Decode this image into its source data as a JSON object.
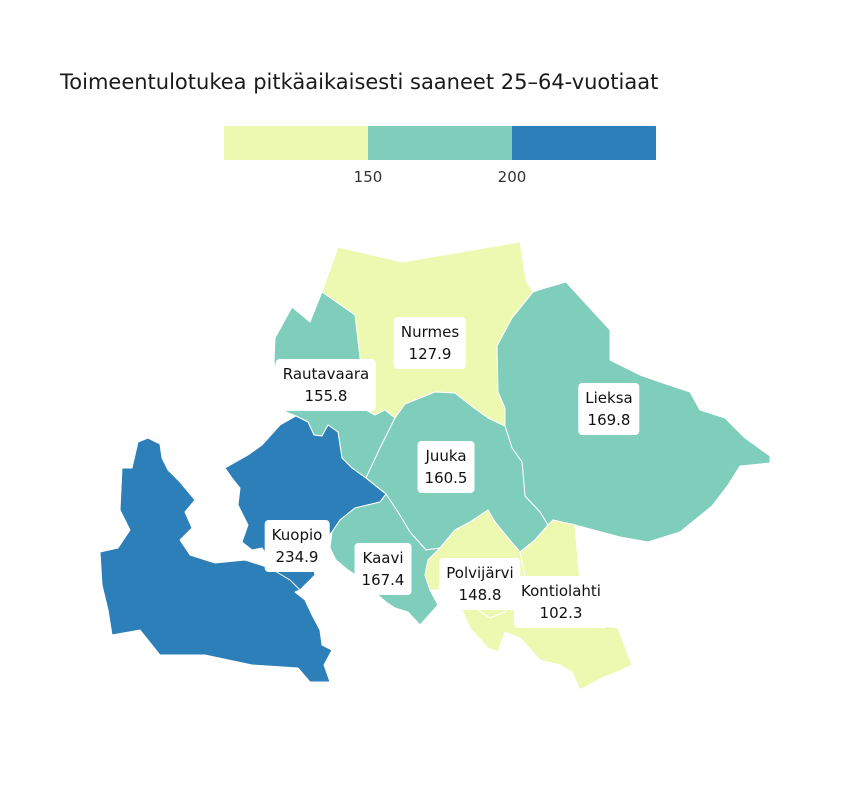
{
  "title": "Toimeentulotukea pitkäaikaisesti saaneet 25–64-vuotiaat",
  "legend": {
    "bins": [
      {
        "color": "#edf8b1"
      },
      {
        "color": "#7fcdbb"
      },
      {
        "color": "#2c7fb8"
      }
    ],
    "ticks": [
      "150",
      "200"
    ]
  },
  "municipalities": [
    {
      "name": "Nurmes",
      "value": "127.9",
      "color": "#edf8b1"
    },
    {
      "name": "Rautavaara",
      "value": "155.8",
      "color": "#7fcdbb"
    },
    {
      "name": "Lieksa",
      "value": "169.8",
      "color": "#7fcdbb"
    },
    {
      "name": "Juuka",
      "value": "160.5",
      "color": "#7fcdbb"
    },
    {
      "name": "Kuopio",
      "value": "234.9",
      "color": "#2c7fb8"
    },
    {
      "name": "Kaavi",
      "value": "167.4",
      "color": "#7fcdbb"
    },
    {
      "name": "Polvijärvi",
      "value": "148.8",
      "color": "#edf8b1"
    },
    {
      "name": "Kontiolahti",
      "value": "102.3",
      "color": "#edf8b1"
    }
  ]
}
